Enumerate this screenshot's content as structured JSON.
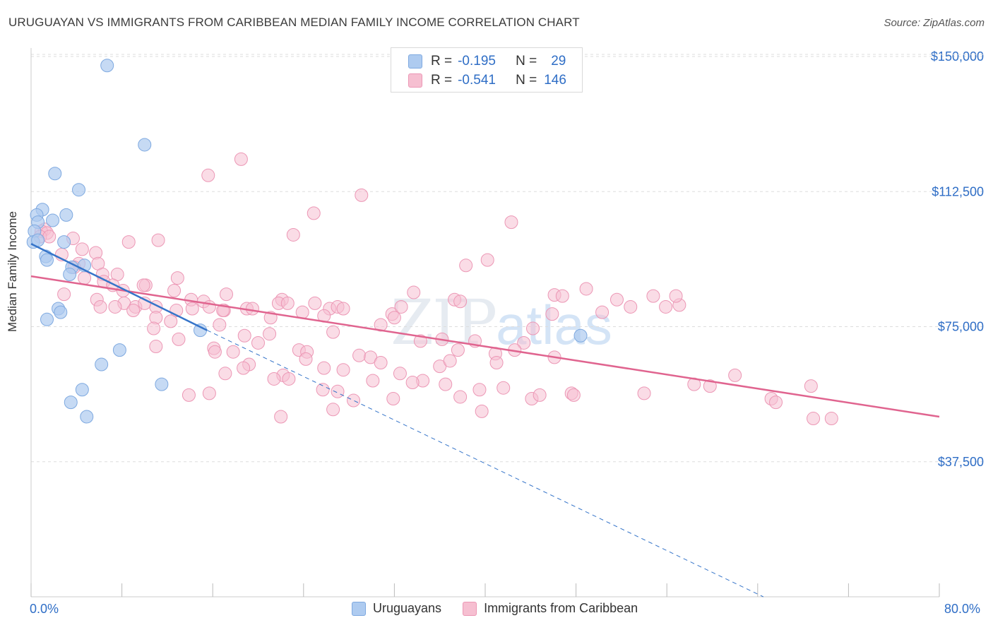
{
  "title": "URUGUAYAN VS IMMIGRANTS FROM CARIBBEAN MEDIAN FAMILY INCOME CORRELATION CHART",
  "source": "Source: ZipAtlas.com",
  "watermark": {
    "zip": "ZIP",
    "atlas": "atlas"
  },
  "legend": {
    "rows": [
      {
        "r_label": "R =",
        "r_value": "-0.195",
        "n_label": "N =",
        "n_value": "29"
      },
      {
        "r_label": "R =",
        "r_value": "-0.541",
        "n_label": "N =",
        "n_value": "146"
      }
    ]
  },
  "colors": {
    "uru_fill": "#aecbf0",
    "uru_stroke": "#7ea9e0",
    "uru_line": "#3574c9",
    "car_fill": "#f6bfd1",
    "car_stroke": "#ec97b5",
    "car_line": "#e0648f",
    "grid": "#dddddd",
    "axis_label": "#2f6ec6"
  },
  "chart_data": {
    "type": "scatter",
    "title": "URUGUAYAN VS IMMIGRANTS FROM CARIBBEAN MEDIAN FAMILY INCOME CORRELATION CHART",
    "xlabel": "",
    "ylabel": "Median Family Income",
    "xlim": [
      0,
      80
    ],
    "ylim": [
      0,
      155000
    ],
    "x_tick_labels": [
      "0.0%",
      "80.0%"
    ],
    "y_ticks": [
      37500,
      75000,
      112500,
      150000
    ],
    "y_tick_labels": [
      "$37,500",
      "$75,000",
      "$112,500",
      "$150,000"
    ],
    "series": [
      {
        "name": "Uruguayans",
        "R": -0.195,
        "N": 29,
        "trend": {
          "x0": 0,
          "y0": 98000,
          "x1": 15.5,
          "y1": 74000,
          "dashed_to_x": 64.5,
          "dashed_to_y": 0
        },
        "points": [
          [
            6.7,
            147500
          ],
          [
            10.0,
            125500
          ],
          [
            2.1,
            117500
          ],
          [
            4.2,
            113000
          ],
          [
            1.0,
            107500
          ],
          [
            0.5,
            106000
          ],
          [
            3.1,
            106000
          ],
          [
            1.9,
            104500
          ],
          [
            0.6,
            104000
          ],
          [
            0.3,
            101500
          ],
          [
            0.2,
            98500
          ],
          [
            0.6,
            99000
          ],
          [
            2.9,
            98500
          ],
          [
            1.3,
            94500
          ],
          [
            1.4,
            93500
          ],
          [
            4.7,
            92000
          ],
          [
            3.6,
            91500
          ],
          [
            3.4,
            89500
          ],
          [
            2.4,
            80000
          ],
          [
            2.6,
            79000
          ],
          [
            1.4,
            77000
          ],
          [
            14.9,
            74000
          ],
          [
            7.8,
            68500
          ],
          [
            6.2,
            64500
          ],
          [
            11.5,
            59000
          ],
          [
            4.5,
            57500
          ],
          [
            3.5,
            54000
          ],
          [
            4.9,
            50000
          ],
          [
            48.4,
            72500
          ]
        ]
      },
      {
        "name": "Immigrants from Caribbean",
        "R": -0.541,
        "N": 146,
        "trend": {
          "x0": 0,
          "y0": 89000,
          "x1": 80,
          "y1": 50000
        },
        "points": [
          [
            18.5,
            121500
          ],
          [
            15.6,
            117000
          ],
          [
            29.1,
            111500
          ],
          [
            24.9,
            106500
          ],
          [
            42.3,
            104000
          ],
          [
            1.2,
            102000
          ],
          [
            0.9,
            101500
          ],
          [
            1.4,
            101000
          ],
          [
            3.7,
            99500
          ],
          [
            11.2,
            99000
          ],
          [
            8.6,
            98500
          ],
          [
            23.1,
            100500
          ],
          [
            0.8,
            100000
          ],
          [
            1.6,
            100000
          ],
          [
            4.5,
            96500
          ],
          [
            5.7,
            95500
          ],
          [
            2.7,
            95000
          ],
          [
            40.2,
            93500
          ],
          [
            4.2,
            92500
          ],
          [
            5.9,
            92500
          ],
          [
            3.8,
            91500
          ],
          [
            38.3,
            92000
          ],
          [
            6.3,
            89500
          ],
          [
            7.6,
            89500
          ],
          [
            12.9,
            88500
          ],
          [
            4.7,
            88500
          ],
          [
            6.4,
            87500
          ],
          [
            7.2,
            86500
          ],
          [
            10.1,
            86500
          ],
          [
            9.9,
            86500
          ],
          [
            8.1,
            85000
          ],
          [
            12.6,
            85000
          ],
          [
            17.2,
            84000
          ],
          [
            22.1,
            82500
          ],
          [
            33.7,
            84500
          ],
          [
            46.1,
            83800
          ],
          [
            54.8,
            83500
          ],
          [
            46.8,
            83500
          ],
          [
            48.9,
            85500
          ],
          [
            51.6,
            82500
          ],
          [
            2.9,
            84000
          ],
          [
            5.8,
            82500
          ],
          [
            8.2,
            81500
          ],
          [
            9.2,
            80500
          ],
          [
            11.0,
            80500
          ],
          [
            14.1,
            82500
          ],
          [
            15.2,
            82000
          ],
          [
            15.7,
            80500
          ],
          [
            17.0,
            79500
          ],
          [
            19.0,
            80000
          ],
          [
            19.5,
            80000
          ],
          [
            21.8,
            81500
          ],
          [
            22.6,
            81500
          ],
          [
            23.9,
            79000
          ],
          [
            25.0,
            81500
          ],
          [
            26.3,
            80000
          ],
          [
            27.0,
            80500
          ],
          [
            27.5,
            80000
          ],
          [
            31.8,
            78500
          ],
          [
            32.0,
            77500
          ],
          [
            32.6,
            80500
          ],
          [
            37.3,
            82500
          ],
          [
            37.8,
            82000
          ],
          [
            9.0,
            79500
          ],
          [
            12.8,
            79500
          ],
          [
            14.2,
            80000
          ],
          [
            16.9,
            79500
          ],
          [
            7.4,
            80500
          ],
          [
            10.0,
            81500
          ],
          [
            45.9,
            78500
          ],
          [
            52.8,
            80500
          ],
          [
            55.9,
            80500
          ],
          [
            50.3,
            79000
          ],
          [
            6.1,
            80500
          ],
          [
            11.0,
            77500
          ],
          [
            12.3,
            76500
          ],
          [
            16.6,
            75500
          ],
          [
            21.1,
            77500
          ],
          [
            25.8,
            78000
          ],
          [
            30.8,
            75500
          ],
          [
            10.8,
            74500
          ],
          [
            13.0,
            71500
          ],
          [
            18.8,
            72500
          ],
          [
            21.0,
            73000
          ],
          [
            26.6,
            73500
          ],
          [
            44.2,
            74500
          ],
          [
            43.4,
            70500
          ],
          [
            36.2,
            71500
          ],
          [
            34.3,
            71000
          ],
          [
            39.1,
            71000
          ],
          [
            11.0,
            69500
          ],
          [
            16.1,
            69000
          ],
          [
            17.8,
            68000
          ],
          [
            16.2,
            68000
          ],
          [
            20.0,
            70500
          ],
          [
            23.6,
            68500
          ],
          [
            24.3,
            68000
          ],
          [
            28.9,
            67000
          ],
          [
            29.9,
            66500
          ],
          [
            40.9,
            67500
          ],
          [
            42.6,
            68500
          ],
          [
            46.1,
            66500
          ],
          [
            37.6,
            68500
          ],
          [
            30.8,
            65000
          ],
          [
            36.0,
            64000
          ],
          [
            41.0,
            65000
          ],
          [
            36.9,
            65500
          ],
          [
            19.2,
            64500
          ],
          [
            18.7,
            63500
          ],
          [
            24.2,
            66000
          ],
          [
            25.8,
            63500
          ],
          [
            27.5,
            63000
          ],
          [
            32.5,
            62000
          ],
          [
            22.2,
            61500
          ],
          [
            21.4,
            60500
          ],
          [
            34.5,
            60000
          ],
          [
            36.5,
            59000
          ],
          [
            30.1,
            60000
          ],
          [
            17.1,
            62000
          ],
          [
            22.7,
            60500
          ],
          [
            33.6,
            59500
          ],
          [
            37.8,
            55500
          ],
          [
            39.5,
            57500
          ],
          [
            41.6,
            58000
          ],
          [
            25.7,
            57500
          ],
          [
            28.4,
            54500
          ],
          [
            31.9,
            55000
          ],
          [
            44.1,
            55000
          ],
          [
            13.9,
            56000
          ],
          [
            15.7,
            56500
          ],
          [
            26.6,
            52000
          ],
          [
            39.7,
            51500
          ],
          [
            22.0,
            50000
          ],
          [
            27.0,
            57000
          ],
          [
            44.8,
            56000
          ],
          [
            47.6,
            56500
          ],
          [
            54.0,
            56500
          ],
          [
            58.4,
            59000
          ],
          [
            59.8,
            58500
          ],
          [
            62.0,
            61500
          ],
          [
            65.2,
            55000
          ],
          [
            65.6,
            54000
          ],
          [
            68.7,
            58500
          ],
          [
            68.9,
            49500
          ],
          [
            70.5,
            49500
          ],
          [
            47.8,
            56000
          ],
          [
            57.1,
            81000
          ],
          [
            56.8,
            83500
          ]
        ]
      }
    ]
  },
  "bottom_legend": [
    "Uruguayans",
    "Immigrants from Caribbean"
  ]
}
